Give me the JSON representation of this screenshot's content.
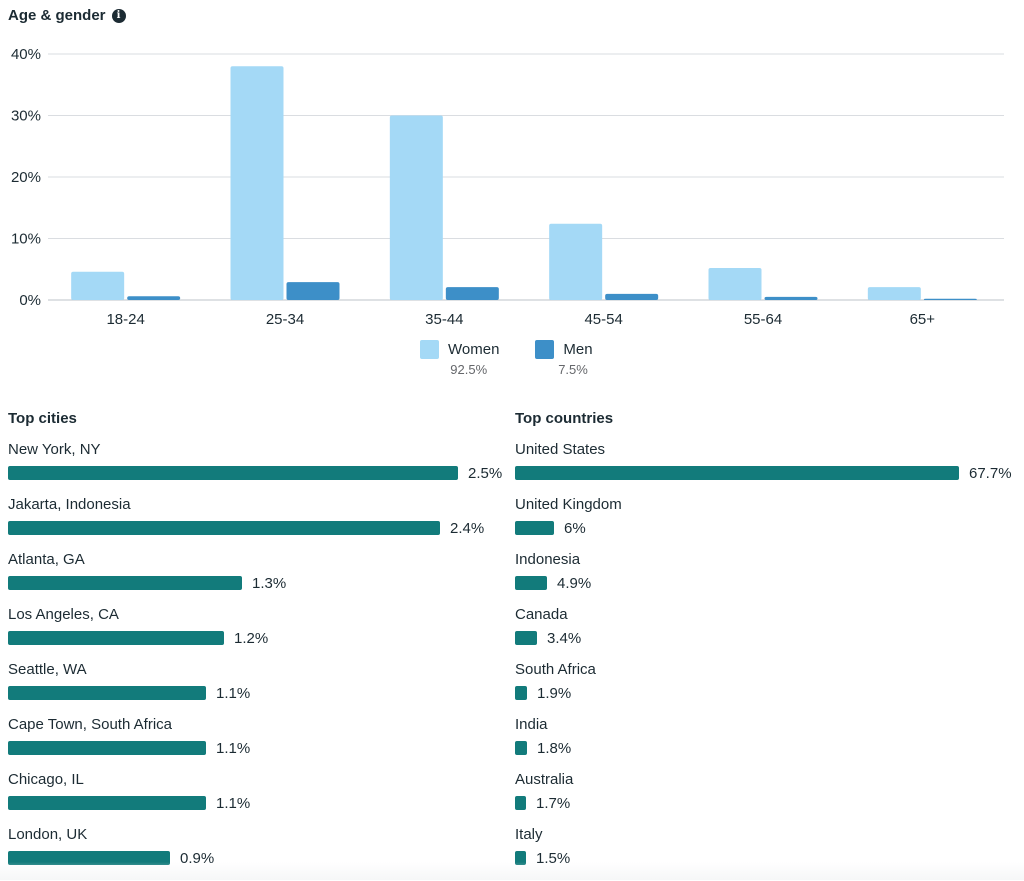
{
  "age_gender": {
    "title": "Age & gender",
    "legend": [
      {
        "name": "Women",
        "pct": "92.5%",
        "color": "#a4d9f6"
      },
      {
        "name": "Men",
        "pct": "7.5%",
        "color": "#3d8fc8"
      }
    ]
  },
  "chart_data": {
    "type": "bar",
    "title": "Age & gender",
    "categories": [
      "18-24",
      "25-34",
      "35-44",
      "45-54",
      "55-64",
      "65+"
    ],
    "series": [
      {
        "name": "Women",
        "values": [
          4.6,
          38.0,
          30.0,
          12.4,
          5.2,
          2.1
        ],
        "color": "#a4d9f6"
      },
      {
        "name": "Men",
        "values": [
          0.6,
          2.9,
          2.1,
          1.0,
          0.5,
          0.2
        ],
        "color": "#3d8fc8"
      }
    ],
    "y_ticks": [
      "0%",
      "10%",
      "20%",
      "30%",
      "40%"
    ],
    "ylim": [
      0,
      40
    ],
    "grid": true,
    "legend_position": "bottom-center"
  },
  "top_cities": {
    "title": "Top cities",
    "items": [
      {
        "label": "New York, NY",
        "value": 2.5,
        "display": "2.5%"
      },
      {
        "label": "Jakarta, Indonesia",
        "value": 2.4,
        "display": "2.4%"
      },
      {
        "label": "Atlanta, GA",
        "value": 1.3,
        "display": "1.3%"
      },
      {
        "label": "Los Angeles, CA",
        "value": 1.2,
        "display": "1.2%"
      },
      {
        "label": "Seattle, WA",
        "value": 1.1,
        "display": "1.1%"
      },
      {
        "label": "Cape Town, South Africa",
        "value": 1.1,
        "display": "1.1%"
      },
      {
        "label": "Chicago, IL",
        "value": 1.1,
        "display": "1.1%"
      },
      {
        "label": "London, UK",
        "value": 0.9,
        "display": "0.9%"
      }
    ]
  },
  "top_countries": {
    "title": "Top countries",
    "items": [
      {
        "label": "United States",
        "value": 67.7,
        "display": "67.7%"
      },
      {
        "label": "United Kingdom",
        "value": 6,
        "display": "6%"
      },
      {
        "label": "Indonesia",
        "value": 4.9,
        "display": "4.9%"
      },
      {
        "label": "Canada",
        "value": 3.4,
        "display": "3.4%"
      },
      {
        "label": "South Africa",
        "value": 1.9,
        "display": "1.9%"
      },
      {
        "label": "India",
        "value": 1.8,
        "display": "1.8%"
      },
      {
        "label": "Australia",
        "value": 1.7,
        "display": "1.7%"
      },
      {
        "label": "Italy",
        "value": 1.5,
        "display": "1.5%"
      }
    ]
  }
}
